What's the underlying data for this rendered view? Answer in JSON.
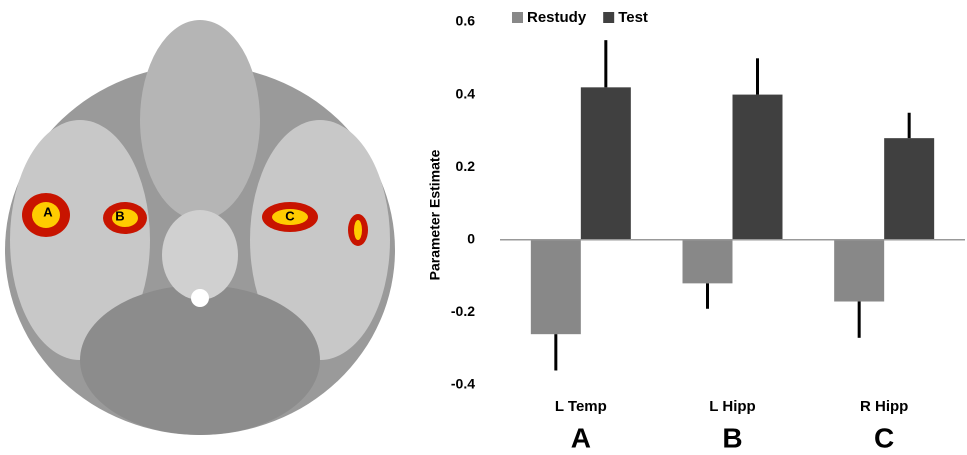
{
  "chart_data": {
    "type": "bar",
    "y_label": "Parameter Estimate",
    "categories": [
      "L Temp",
      "L Hipp",
      "R Hipp"
    ],
    "panel_letters": [
      "A",
      "B",
      "C"
    ],
    "brain_labels": [
      "A",
      "B",
      "C"
    ],
    "series": [
      {
        "name": "Restudy",
        "color": "#888888",
        "values": [
          -0.26,
          -0.12,
          -0.17
        ],
        "errors": [
          0.1,
          0.07,
          0.1
        ]
      },
      {
        "name": "Test",
        "color": "#404040",
        "values": [
          0.42,
          0.4,
          0.28
        ],
        "errors": [
          0.13,
          0.1,
          0.07
        ]
      }
    ],
    "ylim": [
      -0.4,
      0.6
    ],
    "yticks": [
      -0.4,
      -0.2,
      0,
      0.2,
      0.4,
      0.6
    ],
    "legend": "top"
  }
}
